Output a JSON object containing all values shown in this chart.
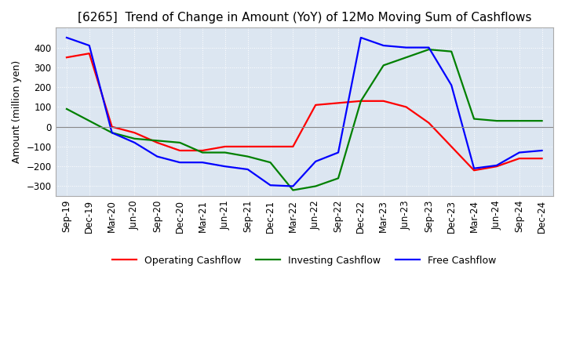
{
  "title": "[6265]  Trend of Change in Amount (YoY) of 12Mo Moving Sum of Cashflows",
  "ylabel": "Amount (million yen)",
  "xlabels": [
    "Sep-19",
    "Dec-19",
    "Mar-20",
    "Jun-20",
    "Sep-20",
    "Dec-20",
    "Mar-21",
    "Jun-21",
    "Sep-21",
    "Dec-21",
    "Mar-22",
    "Jun-22",
    "Sep-22",
    "Dec-22",
    "Mar-23",
    "Jun-23",
    "Sep-23",
    "Dec-23",
    "Mar-24",
    "Jun-24",
    "Sep-24",
    "Dec-24"
  ],
  "operating": [
    350,
    370,
    0,
    -30,
    -80,
    -120,
    -120,
    -100,
    -100,
    -100,
    -100,
    110,
    120,
    130,
    130,
    100,
    20,
    -100,
    -220,
    -200,
    -160,
    -160
  ],
  "investing": [
    90,
    30,
    -30,
    -60,
    -70,
    -80,
    -130,
    -130,
    -150,
    -180,
    -320,
    -300,
    -260,
    130,
    310,
    350,
    390,
    380,
    40,
    30,
    30,
    30
  ],
  "free": [
    450,
    410,
    -30,
    -80,
    -150,
    -180,
    -180,
    -200,
    -215,
    -295,
    -300,
    -175,
    -130,
    450,
    410,
    400,
    400,
    210,
    -210,
    -195,
    -130,
    -120
  ],
  "op_color": "#ff0000",
  "inv_color": "#008000",
  "free_color": "#0000ff",
  "ylim": [
    -350,
    500
  ],
  "yticks": [
    -300,
    -200,
    -100,
    0,
    100,
    200,
    300,
    400
  ],
  "bg_color": "#dce6f1",
  "plot_bg": "#dce6f1",
  "grid_color": "#ffffff",
  "title_fontsize": 11,
  "label_fontsize": 9,
  "tick_fontsize": 8.5
}
